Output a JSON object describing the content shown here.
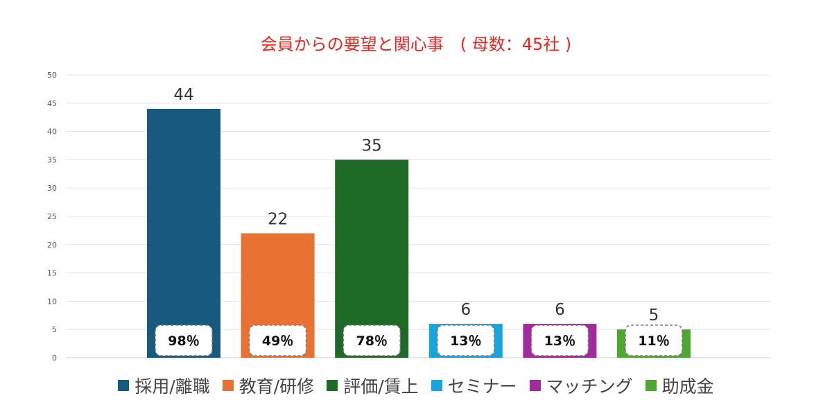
{
  "chart_data": {
    "type": "bar",
    "title": "会員からの要望と関心事　( 母数：45社 )",
    "categories": [
      "採用/離職",
      "教育/研修",
      "評価/賃上",
      "セミナー",
      "マッチング",
      "助成金"
    ],
    "values": [
      44,
      22,
      35,
      6,
      6,
      5
    ],
    "percent_labels": [
      "98％",
      "49％",
      "78％",
      "13％",
      "13％",
      "11％"
    ],
    "colors": [
      "#17597f",
      "#e97132",
      "#1d6b27",
      "#17a5e0",
      "#a12a9c",
      "#4ea72e"
    ],
    "ylim": [
      0,
      50
    ],
    "yticks": [
      0,
      5,
      10,
      15,
      20,
      25,
      30,
      35,
      40,
      45,
      50
    ],
    "grid": true,
    "legend_position": "bottom"
  }
}
